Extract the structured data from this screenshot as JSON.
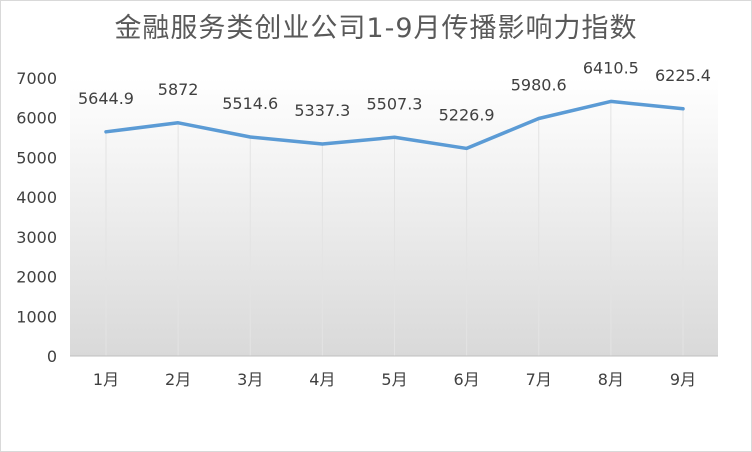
{
  "chart_data": {
    "type": "line",
    "title": "金融服务类创业公司1-9月传播影响力指数",
    "xlabel": "",
    "ylabel": "",
    "categories": [
      "1月",
      "2月",
      "3月",
      "4月",
      "5月",
      "6月",
      "7月",
      "8月",
      "9月"
    ],
    "series": [
      {
        "values": [
          5644.9,
          5872,
          5514.6,
          5337.3,
          5507.3,
          5226.9,
          5980.6,
          6410.5,
          6225.4
        ],
        "labels": [
          "5644.9",
          "5872",
          "5514.6",
          "5337.3",
          "5507.3",
          "5226.9",
          "5980.6",
          "6410.5",
          "6225.4"
        ],
        "color": "#5b9bd5"
      }
    ],
    "ylim": [
      0,
      7000
    ],
    "yticks": [
      0,
      1000,
      2000,
      3000,
      4000,
      5000,
      6000,
      7000
    ],
    "grid": "vertical-drop-lines",
    "legend": "none",
    "colors": {
      "line": "#5b9bd5",
      "gradient_top": "#ffffff",
      "gradient_bottom": "#d9d9d9",
      "text": "#404040",
      "title": "#595959"
    }
  }
}
